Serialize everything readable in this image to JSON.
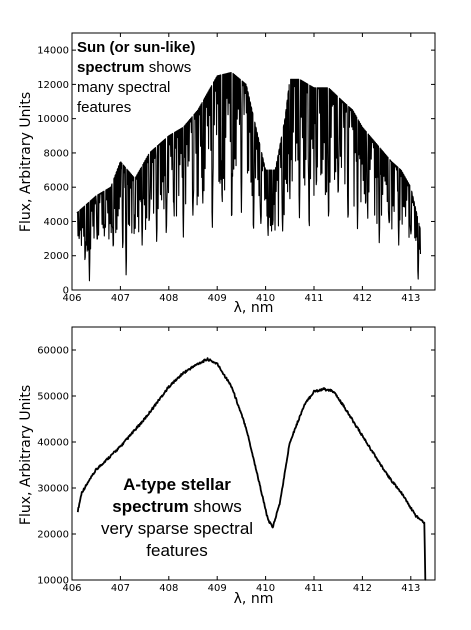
{
  "chart_data": [
    {
      "type": "line",
      "xlabel": "λ, nm",
      "ylabel": "Flux, Arbitrary Units",
      "xlim": [
        406,
        413.5
      ],
      "ylim": [
        0,
        15000
      ],
      "x_ticks": [
        "406",
        "407",
        "408",
        "409",
        "410",
        "411",
        "412",
        "413"
      ],
      "y_ticks": [
        "0",
        "2000",
        "4000",
        "6000",
        "8000",
        "10000",
        "12000",
        "14000"
      ],
      "annotation": {
        "bold": [
          "Sun (or sun-like)",
          "spectrum"
        ],
        "normal": [
          "shows",
          "many spectral",
          "features"
        ]
      },
      "series": [
        {
          "x": [
            406.1,
            406.3,
            406.5,
            406.8,
            407.0,
            407.3,
            407.6,
            407.8,
            408.0,
            408.3,
            408.6,
            408.8,
            409.0,
            409.3,
            409.6,
            409.8,
            410.0,
            410.2,
            410.4,
            410.5,
            410.7,
            411.0,
            411.3,
            411.6,
            411.8,
            412.0,
            412.3,
            412.6,
            412.8,
            413.0,
            413.2
          ],
          "y": [
            4500,
            5000,
            5500,
            6000,
            7500,
            6500,
            8000,
            8500,
            9000,
            9500,
            10500,
            11500,
            12500,
            12700,
            12000,
            9500,
            7000,
            7000,
            10000,
            12300,
            12300,
            11800,
            11800,
            11000,
            10500,
            9500,
            8500,
            7500,
            7000,
            6000,
            3500
          ],
          "dips": [
            [
              406.15,
              3000
            ],
            [
              406.27,
              1500
            ],
            [
              406.36,
              500
            ],
            [
              406.52,
              2800
            ],
            [
              406.68,
              3500
            ],
            [
              406.85,
              2500
            ],
            [
              407.05,
              2000
            ],
            [
              407.12,
              600
            ],
            [
              407.3,
              3500
            ],
            [
              407.45,
              2500
            ],
            [
              407.6,
              4000
            ],
            [
              407.75,
              2600
            ],
            [
              407.95,
              3000
            ],
            [
              408.1,
              4500
            ],
            [
              408.3,
              3000
            ],
            [
              408.5,
              4000
            ],
            [
              408.7,
              5000
            ],
            [
              408.9,
              3500
            ],
            [
              409.1,
              5000
            ],
            [
              409.3,
              3500
            ],
            [
              409.5,
              4500
            ],
            [
              409.75,
              3000
            ],
            [
              409.9,
              3500
            ],
            [
              410.05,
              3000
            ],
            [
              410.15,
              3500
            ],
            [
              410.35,
              3000
            ],
            [
              410.5,
              5000
            ],
            [
              410.7,
              4000
            ],
            [
              410.9,
              3000
            ],
            [
              411.05,
              5500
            ],
            [
              411.3,
              4000
            ],
            [
              411.5,
              5000
            ],
            [
              411.7,
              4000
            ],
            [
              411.9,
              3500
            ],
            [
              412.1,
              4500
            ],
            [
              412.35,
              2500
            ],
            [
              412.55,
              3500
            ],
            [
              412.75,
              2600
            ],
            [
              413.0,
              3000
            ],
            [
              413.15,
              500
            ],
            [
              413.25,
              1500
            ]
          ]
        }
      ]
    },
    {
      "type": "line",
      "xlabel": "λ, nm",
      "ylabel": "Flux, Arbitrary Units",
      "xlim": [
        406,
        413.5
      ],
      "ylim": [
        10000,
        65000
      ],
      "x_ticks": [
        "406",
        "407",
        "408",
        "409",
        "410",
        "411",
        "412",
        "413"
      ],
      "y_ticks": [
        "10000",
        "20000",
        "30000",
        "40000",
        "50000",
        "60000"
      ],
      "annotation": {
        "lines": [
          [
            "A-type stellar",
            ""
          ],
          [
            "spectrum",
            " shows"
          ],
          [
            "",
            "very sparse spectral"
          ],
          [
            "",
            "features"
          ]
        ]
      },
      "series": [
        {
          "x": [
            406.12,
            406.2,
            406.5,
            407.0,
            407.5,
            408.0,
            408.3,
            408.6,
            408.8,
            409.0,
            409.3,
            409.6,
            409.85,
            410.05,
            410.15,
            410.3,
            410.5,
            410.8,
            411.0,
            411.2,
            411.4,
            411.6,
            411.9,
            412.2,
            412.5,
            412.8,
            413.1,
            413.28,
            413.3,
            413.31
          ],
          "y": [
            25000,
            29000,
            34000,
            39000,
            45000,
            52000,
            55000,
            57000,
            58000,
            57000,
            52000,
            43000,
            32000,
            23000,
            21500,
            27000,
            40000,
            48000,
            51000,
            51500,
            51000,
            48000,
            43000,
            38000,
            33000,
            29000,
            24000,
            22500,
            10000,
            10000
          ]
        }
      ]
    }
  ]
}
